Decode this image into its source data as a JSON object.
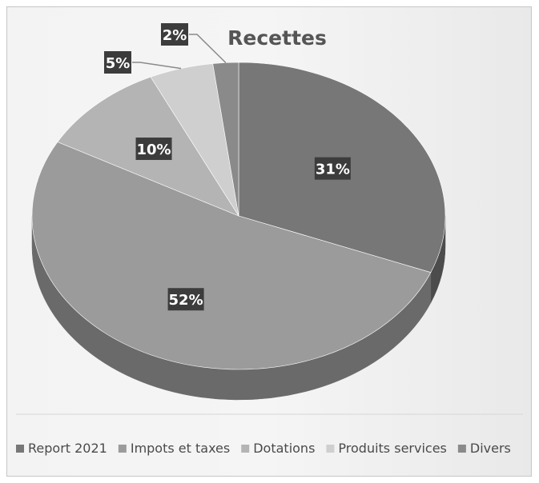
{
  "chart_data": {
    "type": "pie",
    "title": "Recettes",
    "series": [
      {
        "name": "Report 2021",
        "value": 31,
        "label": "31%",
        "color": "#777777",
        "side": "#4c4c4c"
      },
      {
        "name": "Impots et taxes",
        "value": 52,
        "label": "52%",
        "color": "#9b9b9b",
        "side": "#6a6a6a"
      },
      {
        "name": "Dotations",
        "value": 10,
        "label": "10%",
        "color": "#b4b4b4",
        "side": "#838383"
      },
      {
        "name": "Produits services",
        "value": 5,
        "label": "5%",
        "color": "#cfcfcf",
        "side": "#9a9a9a"
      },
      {
        "name": "Divers",
        "value": 2,
        "label": "2%",
        "color": "#8a8a8a",
        "side": "#5e5e5e"
      }
    ],
    "legend_position": "bottom",
    "three_d": true
  }
}
